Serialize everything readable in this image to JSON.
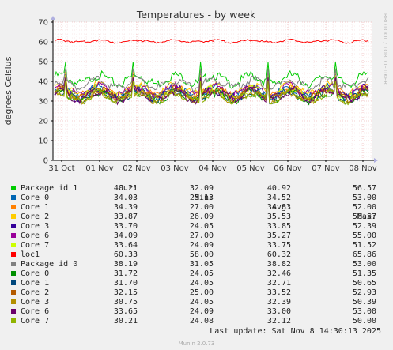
{
  "chart_data": {
    "type": "line",
    "title": "Temperatures - by week",
    "ylabel": "degrees Celsius",
    "ylim": [
      0,
      70
    ],
    "yticks": [
      0,
      10,
      20,
      30,
      40,
      50,
      60,
      70
    ],
    "xticks": [
      "31 Oct",
      "01 Nov",
      "02 Nov",
      "03 Nov",
      "04 Nov",
      "05 Nov",
      "06 Nov",
      "07 Nov",
      "08 Nov"
    ],
    "grid": true,
    "watermark": "RRDTOOL / TOBI OETIKER",
    "legend_header": {
      "cur": "Cur:",
      "min": "Min:",
      "avg": "Avg:",
      "max": "Max:"
    },
    "series": [
      {
        "name": "Package id 1",
        "color": "#00cc00",
        "cur": "40.21",
        "min": "32.09",
        "avg": "40.92",
        "max": "56.57"
      },
      {
        "name": "Core 0",
        "color": "#0066b3",
        "cur": "34.03",
        "min": "25.13",
        "avg": "34.52",
        "max": "53.00"
      },
      {
        "name": "Core 1",
        "color": "#ff8000",
        "cur": "34.39",
        "min": "27.00",
        "avg": "34.83",
        "max": "52.00"
      },
      {
        "name": "Core 2",
        "color": "#ffcc00",
        "cur": "33.87",
        "min": "26.09",
        "avg": "35.53",
        "max": "56.57"
      },
      {
        "name": "Core 3",
        "color": "#330099",
        "cur": "33.70",
        "min": "24.05",
        "avg": "33.85",
        "max": "52.39"
      },
      {
        "name": "Core 6",
        "color": "#990099",
        "cur": "34.09",
        "min": "27.00",
        "avg": "35.27",
        "max": "55.00"
      },
      {
        "name": "Core 7",
        "color": "#ccff00",
        "cur": "33.64",
        "min": "24.09",
        "avg": "33.75",
        "max": "51.52"
      },
      {
        "name": "loc1",
        "color": "#ff0000",
        "cur": "60.33",
        "min": "58.00",
        "avg": "60.32",
        "max": "65.86"
      },
      {
        "name": "Package id 0",
        "color": "#808080",
        "cur": "38.19",
        "min": "31.05",
        "avg": "38.82",
        "max": "53.00"
      },
      {
        "name": "Core 0",
        "color": "#008f00",
        "cur": "31.72",
        "min": "24.05",
        "avg": "32.46",
        "max": "51.35"
      },
      {
        "name": "Core 1",
        "color": "#00487d",
        "cur": "31.70",
        "min": "24.05",
        "avg": "32.71",
        "max": "50.65"
      },
      {
        "name": "Core 2",
        "color": "#b35a00",
        "cur": "32.15",
        "min": "25.00",
        "avg": "33.52",
        "max": "52.93"
      },
      {
        "name": "Core 3",
        "color": "#b38f00",
        "cur": "30.75",
        "min": "24.05",
        "avg": "32.39",
        "max": "50.39"
      },
      {
        "name": "Core 6",
        "color": "#6b006b",
        "cur": "33.65",
        "min": "24.09",
        "avg": "33.00",
        "max": "53.00"
      },
      {
        "name": "Core 7",
        "color": "#8fb300",
        "cur": "30.21",
        "min": "24.08",
        "avg": "32.12",
        "max": "50.00"
      }
    ]
  },
  "footer": {
    "last_update": "Last update: Sat Nov  8 14:30:13 2025",
    "munin_version": "Munin 2.0.73"
  }
}
